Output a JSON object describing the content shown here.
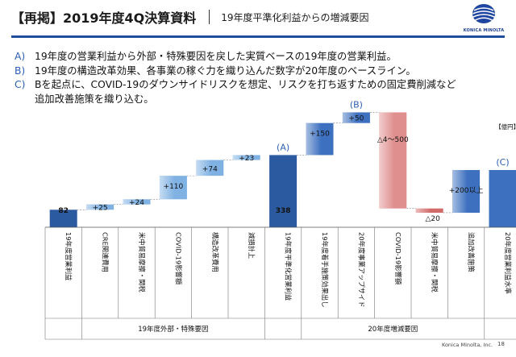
{
  "header": {
    "title": "【再掲】2019年度4Q決算資料",
    "subtitle": "19年度平準化利益からの増減要因",
    "logo_text": "KONICA MINOLTA"
  },
  "notes": [
    {
      "key": "A)",
      "text": "19年度の営業利益から外部・特殊要因を戻した実質ベースの19年度の営業利益。"
    },
    {
      "key": "B)",
      "text": "19年度の構造改革効果、各事業の稼ぐ力を織り込んだ数字が20年度のベースライン。"
    },
    {
      "key": "C)",
      "text": "Bを起点に、COVID-19のダウンサイドリスクを想定、リスクを打ち返すための固定費削減など"
    },
    {
      "key": "",
      "text": "追加改善施策を織り込む。"
    }
  ],
  "chart_data": {
    "type": "waterfall",
    "unit": "【億円】",
    "bars": [
      {
        "category": "19年度営業利益",
        "label": "82",
        "kind": "total",
        "base": 0,
        "value": 82,
        "color": "#2c5aa0"
      },
      {
        "category": "CRE関連費用",
        "label": "+25",
        "kind": "step",
        "base": 82,
        "value": 25,
        "color": "#7fb1e3"
      },
      {
        "category": "米中貿易摩擦・関税",
        "label": "+24",
        "kind": "step",
        "base": 107,
        "value": 24,
        "color": "#7fb1e3"
      },
      {
        "category": "COVID-19影響額",
        "label": "+110",
        "kind": "step",
        "base": 131,
        "value": 110,
        "color": "#7fb1e3"
      },
      {
        "category": "構造改革費用",
        "label": "+74",
        "kind": "step",
        "base": 241,
        "value": 74,
        "color": "#7fb1e3"
      },
      {
        "category": "減損計上",
        "label": "+23",
        "kind": "step",
        "base": 315,
        "value": 23,
        "color": "#7fb1e3"
      },
      {
        "category": "19年度平準化営業利益",
        "label": "338",
        "kind": "total",
        "base": 0,
        "value": 338,
        "color": "#2c5aa0",
        "marker": "(A)"
      },
      {
        "category": "19年度着手施策効果出し",
        "label": "+150",
        "kind": "step",
        "base": 338,
        "value": 150,
        "color": "#3d70bf"
      },
      {
        "category": "20年度事業アップサイド",
        "label": "+50",
        "kind": "step",
        "base": 488,
        "value": 50,
        "color": "#3d70bf",
        "marker": "(B)"
      },
      {
        "category": "COVID-19影響額",
        "label": "△4～500",
        "kind": "step",
        "base": 538,
        "value": -450,
        "color": "#e08f8f"
      },
      {
        "category": "米中貿易摩擦・関税",
        "label": "△20",
        "kind": "step",
        "base": 88,
        "value": -20,
        "color": "#d26a6a"
      },
      {
        "category": "追加改善施策",
        "label": "+200以上",
        "kind": "step",
        "base": 68,
        "value": 200,
        "color": "#3d70bf"
      },
      {
        "category": "20年度営業利益水準",
        "label": "",
        "kind": "total",
        "base": 0,
        "value": 268,
        "color": "#3d70bf",
        "marker": "(C)"
      }
    ],
    "groups": [
      {
        "label": "19年度外部・特殊要因",
        "from": 1,
        "to": 5
      },
      {
        "label": "20年度増減要因",
        "from": 7,
        "to": 11
      }
    ]
  },
  "footer": {
    "company": "Konica Minolta, Inc.",
    "page": "18"
  }
}
